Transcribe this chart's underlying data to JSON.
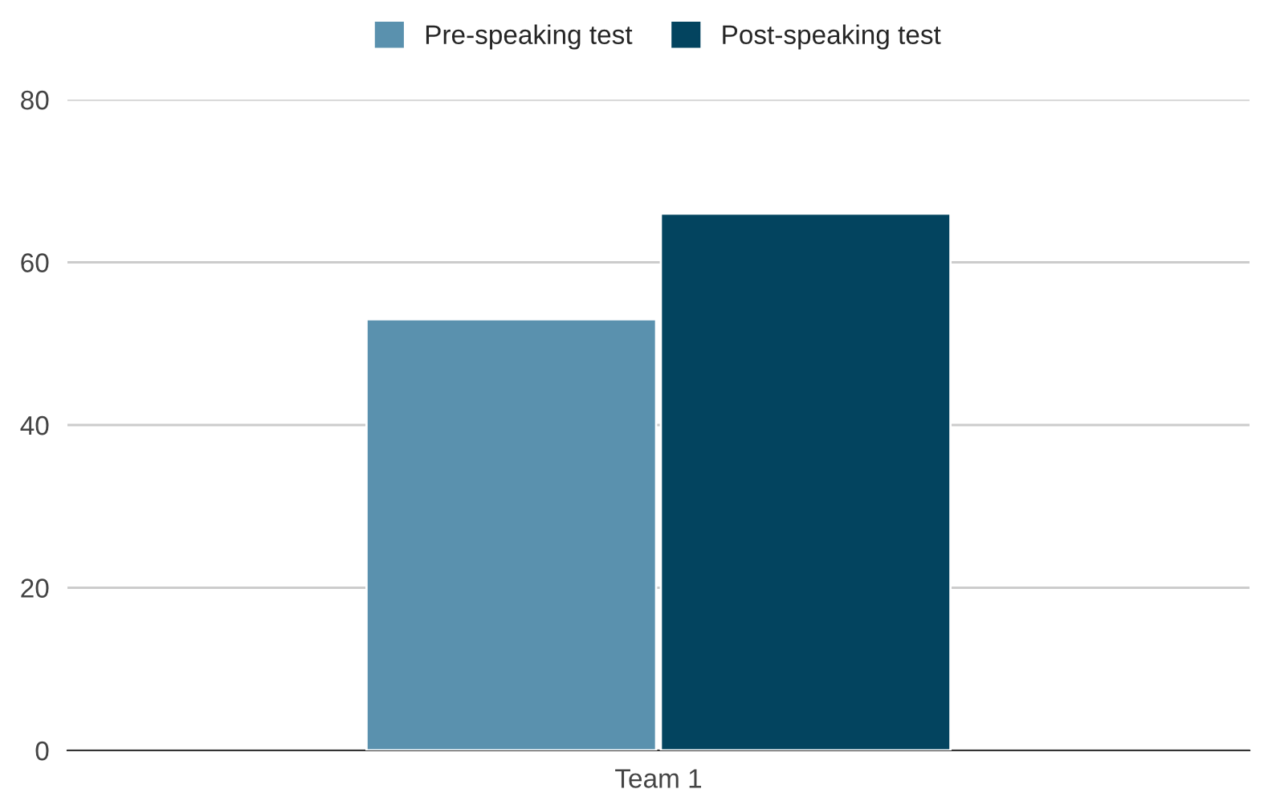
{
  "chart_data": {
    "type": "bar",
    "categories": [
      "Team 1"
    ],
    "series": [
      {
        "name": "Pre-speaking test",
        "color": "#5a91ae",
        "values": [
          53
        ]
      },
      {
        "name": "Post-speaking test",
        "color": "#03445f",
        "values": [
          66
        ]
      }
    ],
    "ylim": [
      0,
      80
    ],
    "yticks": [
      0,
      20,
      40,
      60,
      80
    ],
    "grid": "y",
    "legend": "top"
  }
}
